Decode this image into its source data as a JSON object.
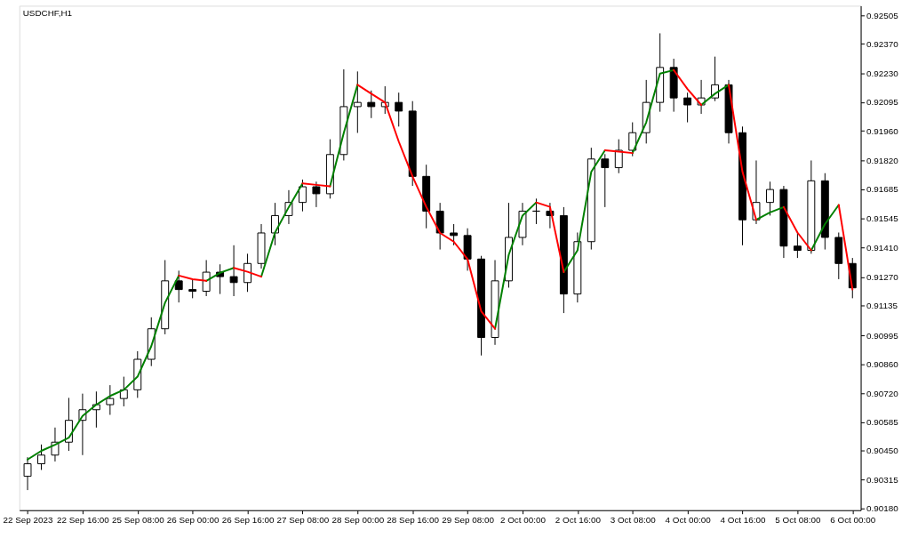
{
  "chart_data": {
    "type": "candlestick",
    "title": "USDCHF,H1",
    "categories": [
      "22 Sep 2023",
      null,
      null,
      null,
      "22 Sep 16:00",
      null,
      null,
      null,
      "25 Sep 08:00",
      null,
      null,
      null,
      "26 Sep 00:00",
      null,
      null,
      null,
      "26 Sep 16:00",
      null,
      null,
      null,
      "27 Sep 08:00",
      null,
      null,
      null,
      "28 Sep 00:00",
      null,
      null,
      null,
      "28 Sep 16:00",
      null,
      null,
      null,
      "29 Sep 08:00",
      null,
      null,
      null,
      "2 Oct 00:00",
      null,
      null,
      null,
      "2 Oct 16:00",
      null,
      null,
      null,
      "3 Oct 08:00",
      null,
      null,
      null,
      "4 Oct 00:00",
      null,
      null,
      null,
      "4 Oct 16:00",
      null,
      null,
      null,
      "5 Oct 08:00",
      null,
      null,
      null,
      "6 Oct 00:00"
    ],
    "ohlc": [
      [
        0.9033,
        0.9042,
        0.90265,
        0.90389
      ],
      [
        0.90389,
        0.9048,
        0.9036,
        0.9043
      ],
      [
        0.9043,
        0.9056,
        0.904,
        0.90491
      ],
      [
        0.90491,
        0.907,
        0.9045,
        0.90594
      ],
      [
        0.90594,
        0.9072,
        0.9043,
        0.90644
      ],
      [
        0.90644,
        0.9073,
        0.9056,
        0.90668
      ],
      [
        0.90668,
        0.9076,
        0.9062,
        0.90697
      ],
      [
        0.90697,
        0.908,
        0.9066,
        0.90738
      ],
      [
        0.90738,
        0.9092,
        0.907,
        0.90882
      ],
      [
        0.90882,
        0.9108,
        0.9085,
        0.91026
      ],
      [
        0.91026,
        0.9135,
        0.91,
        0.91252
      ],
      [
        0.91252,
        0.913,
        0.9115,
        0.91211
      ],
      [
        0.91211,
        0.9126,
        0.9117,
        0.91203
      ],
      [
        0.91203,
        0.9135,
        0.9118,
        0.91293
      ],
      [
        0.91293,
        0.9133,
        0.9119,
        0.91272
      ],
      [
        0.91272,
        0.9142,
        0.9118,
        0.91244
      ],
      [
        0.91244,
        0.9138,
        0.912,
        0.91334
      ],
      [
        0.91334,
        0.9152,
        0.9131,
        0.91478
      ],
      [
        0.91478,
        0.9162,
        0.9142,
        0.9156
      ],
      [
        0.9156,
        0.9168,
        0.9152,
        0.91622
      ],
      [
        0.91622,
        0.9173,
        0.9158,
        0.91696
      ],
      [
        0.91696,
        0.9172,
        0.916,
        0.91663
      ],
      [
        0.91663,
        0.9192,
        0.9164,
        0.91848
      ],
      [
        0.91848,
        0.9225,
        0.9182,
        0.92074
      ],
      [
        0.92074,
        0.9224,
        0.9195,
        0.92094
      ],
      [
        0.92094,
        0.9215,
        0.9202,
        0.92074
      ],
      [
        0.92074,
        0.9217,
        0.9204,
        0.92094
      ],
      [
        0.92094,
        0.9214,
        0.9198,
        0.92053
      ],
      [
        0.92053,
        0.921,
        0.917,
        0.91745
      ],
      [
        0.91745,
        0.918,
        0.915,
        0.91581
      ],
      [
        0.91581,
        0.9162,
        0.914,
        0.91478
      ],
      [
        0.91478,
        0.9152,
        0.9142,
        0.91466
      ],
      [
        0.91466,
        0.915,
        0.913,
        0.91355
      ],
      [
        0.91355,
        0.9137,
        0.909,
        0.90985
      ],
      [
        0.90985,
        0.9135,
        0.9095,
        0.91252
      ],
      [
        0.91252,
        0.9162,
        0.9122,
        0.91457
      ],
      [
        0.91457,
        0.9162,
        0.9142,
        0.91581
      ],
      [
        0.91581,
        0.9164,
        0.9152,
        0.91581
      ],
      [
        0.91581,
        0.9162,
        0.915,
        0.9156
      ],
      [
        0.9156,
        0.916,
        0.911,
        0.9119
      ],
      [
        0.9119,
        0.9148,
        0.9115,
        0.91437
      ],
      [
        0.91437,
        0.9188,
        0.914,
        0.91827
      ],
      [
        0.91827,
        0.9185,
        0.916,
        0.91786
      ],
      [
        0.91786,
        0.9192,
        0.9176,
        0.91868
      ],
      [
        0.91868,
        0.92,
        0.9184,
        0.91951
      ],
      [
        0.91951,
        0.922,
        0.919,
        0.92094
      ],
      [
        0.92094,
        0.9242,
        0.9205,
        0.92259
      ],
      [
        0.92259,
        0.923,
        0.9205,
        0.92115
      ],
      [
        0.92115,
        0.9214,
        0.92,
        0.92082
      ],
      [
        0.92082,
        0.922,
        0.9204,
        0.92115
      ],
      [
        0.92115,
        0.9231,
        0.921,
        0.92177
      ],
      [
        0.92177,
        0.922,
        0.919,
        0.91951
      ],
      [
        0.91951,
        0.9198,
        0.9142,
        0.9154
      ],
      [
        0.9154,
        0.9182,
        0.9152,
        0.91622
      ],
      [
        0.91622,
        0.9172,
        0.9156,
        0.91683
      ],
      [
        0.91683,
        0.917,
        0.9136,
        0.91416
      ],
      [
        0.91416,
        0.9148,
        0.9136,
        0.91396
      ],
      [
        0.91396,
        0.9182,
        0.9138,
        0.91724
      ],
      [
        0.91724,
        0.9176,
        0.914,
        0.91457
      ],
      [
        0.91457,
        0.9148,
        0.9126,
        0.91334
      ],
      [
        0.91334,
        0.9136,
        0.9117,
        0.91219
      ]
    ],
    "series": [
      {
        "type": "line",
        "color": "#008000",
        "values": [
          0.90409,
          0.9045,
          0.90479,
          0.90512,
          0.90615,
          0.90668,
          0.90709,
          0.90738,
          0.908,
          0.90944,
          0.91149,
          0.91277,
          null,
          0.91252,
          0.9129,
          0.91313,
          null,
          0.91272,
          0.9148,
          0.916,
          0.91712,
          null,
          0.91698,
          0.9195,
          0.92177,
          null,
          null,
          null,
          null,
          null,
          null,
          null,
          null,
          null,
          0.91026,
          0.91375,
          0.9156,
          0.91622,
          null,
          0.91293,
          0.91396,
          0.91766,
          0.91868,
          null,
          0.91855,
          0.92,
          0.9223,
          0.92246,
          null,
          0.92082,
          0.92135,
          0.92177,
          null,
          0.9154,
          0.91575,
          0.916,
          null,
          0.91396,
          0.9152,
          0.9161,
          null
        ]
      },
      {
        "type": "line",
        "color": "#ff0000",
        "values": [
          null,
          null,
          null,
          null,
          null,
          null,
          null,
          null,
          null,
          null,
          null,
          0.91277,
          0.9126,
          0.91252,
          null,
          0.91313,
          0.91295,
          0.91272,
          null,
          null,
          0.91712,
          0.91705,
          0.91698,
          null,
          0.92177,
          0.92135,
          0.92094,
          0.91909,
          0.91745,
          0.91601,
          0.91478,
          0.91437,
          0.91355,
          0.91108,
          0.91026,
          null,
          null,
          0.91622,
          0.91601,
          0.91293,
          null,
          null,
          0.91868,
          0.91862,
          0.91855,
          null,
          null,
          0.92246,
          0.92157,
          0.92082,
          null,
          0.92177,
          0.91766,
          0.9154,
          null,
          0.916,
          0.9148,
          0.91396,
          null,
          0.9161,
          0.91211
        ]
      }
    ],
    "ylim": [
      0.9017,
      0.9255
    ],
    "yticks": [
      {
        "value": 0.9018,
        "label": "0.90180"
      },
      {
        "value": 0.90315,
        "label": "0.90315"
      },
      {
        "value": 0.9045,
        "label": "0.90450"
      },
      {
        "value": 0.90585,
        "label": "0.90585"
      },
      {
        "value": 0.9072,
        "label": "0.90720"
      },
      {
        "value": 0.9086,
        "label": "0.90860"
      },
      {
        "value": 0.90995,
        "label": "0.90995"
      },
      {
        "value": 0.91135,
        "label": "0.91135"
      },
      {
        "value": 0.9127,
        "label": "0.91270"
      },
      {
        "value": 0.9141,
        "label": "0.91410"
      },
      {
        "value": 0.91545,
        "label": "0.91545"
      },
      {
        "value": 0.91685,
        "label": "0.91685"
      },
      {
        "value": 0.9182,
        "label": "0.91820"
      },
      {
        "value": 0.9196,
        "label": "0.91960"
      },
      {
        "value": 0.92095,
        "label": "0.92095"
      },
      {
        "value": 0.9223,
        "label": "0.92230"
      },
      {
        "value": 0.9237,
        "label": "0.92370"
      },
      {
        "value": 0.92505,
        "label": "0.92505"
      }
    ],
    "grid": false
  }
}
